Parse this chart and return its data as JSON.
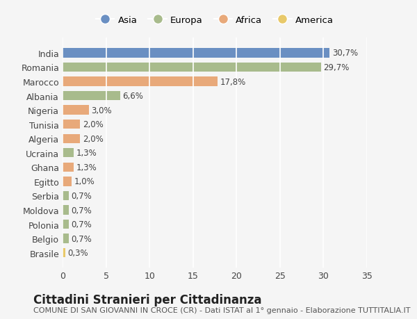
{
  "countries": [
    "India",
    "Romania",
    "Marocco",
    "Albania",
    "Nigeria",
    "Tunisia",
    "Algeria",
    "Ucraina",
    "Ghana",
    "Egitto",
    "Serbia",
    "Moldova",
    "Polonia",
    "Belgio",
    "Brasile"
  ],
  "values": [
    30.7,
    29.7,
    17.8,
    6.6,
    3.0,
    2.0,
    2.0,
    1.3,
    1.3,
    1.0,
    0.7,
    0.7,
    0.7,
    0.7,
    0.3
  ],
  "labels": [
    "30,7%",
    "29,7%",
    "17,8%",
    "6,6%",
    "3,0%",
    "2,0%",
    "2,0%",
    "1,3%",
    "1,3%",
    "1,0%",
    "0,7%",
    "0,7%",
    "0,7%",
    "0,7%",
    "0,3%"
  ],
  "continents": [
    "Asia",
    "Europa",
    "Africa",
    "Europa",
    "Africa",
    "Africa",
    "Africa",
    "Europa",
    "Africa",
    "Africa",
    "Europa",
    "Europa",
    "Europa",
    "Europa",
    "America"
  ],
  "colors": {
    "Asia": "#6a8fc2",
    "Europa": "#a8bb8c",
    "Africa": "#e8a97a",
    "America": "#e8c96a"
  },
  "legend_labels": [
    "Asia",
    "Europa",
    "Africa",
    "America"
  ],
  "legend_colors": [
    "#6a8fc2",
    "#a8bb8c",
    "#e8a97a",
    "#e8c96a"
  ],
  "title": "Cittadini Stranieri per Cittadinanza",
  "subtitle": "COMUNE DI SAN GIOVANNI IN CROCE (CR) - Dati ISTAT al 1° gennaio - Elaborazione TUTTITALIA.IT",
  "xlim": [
    0,
    35
  ],
  "xticks": [
    0,
    5,
    10,
    15,
    20,
    25,
    30,
    35
  ],
  "background_color": "#f5f5f5",
  "bar_height": 0.65,
  "grid_color": "#ffffff",
  "title_fontsize": 12,
  "subtitle_fontsize": 8,
  "tick_fontsize": 9,
  "label_fontsize": 8.5
}
